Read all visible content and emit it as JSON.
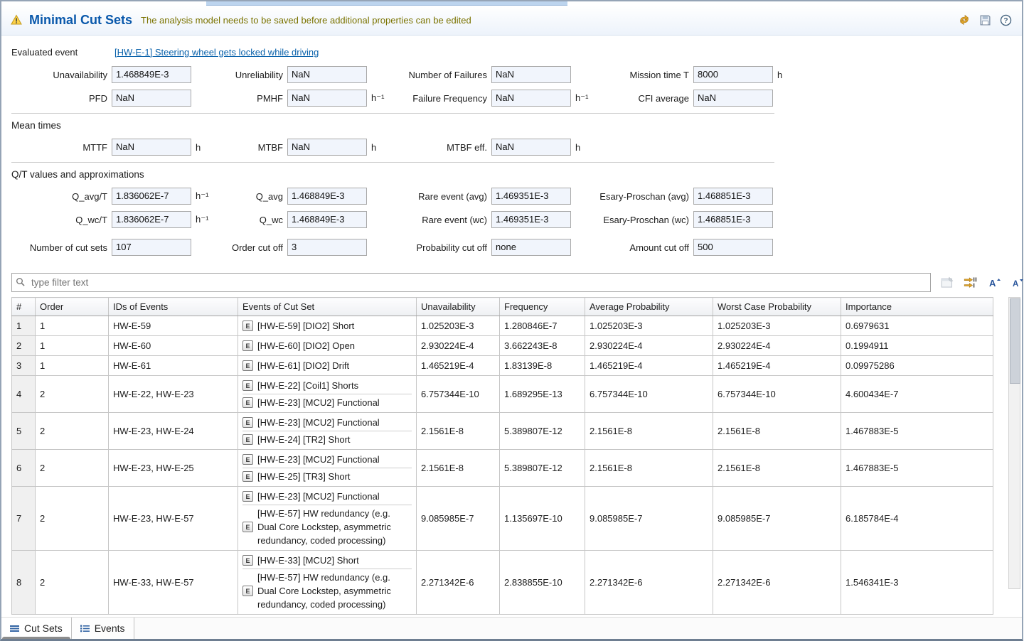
{
  "header": {
    "title": "Minimal Cut Sets",
    "message": "The analysis model needs to be saved before additional properties can be edited",
    "icons": [
      "warning-icon",
      "sync-icon",
      "save-icon",
      "help-icon"
    ]
  },
  "form": {
    "evaluated_event_label": "Evaluated event",
    "evaluated_event_link": "[HW-E-1] Steering wheel gets locked while driving",
    "section_mean_times": "Mean times",
    "section_qt": "Q/T values and approximations",
    "field_rows": [
      {
        "fields": [
          {
            "label": "Unavailability",
            "value": "1.468849E-3",
            "unit": ""
          },
          {
            "label": "Unreliability",
            "value": "NaN",
            "unit": ""
          },
          {
            "label": "Number of Failures",
            "value": "NaN",
            "unit": ""
          },
          {
            "label": "Mission time T",
            "value": "8000",
            "unit": "h"
          }
        ]
      },
      {
        "fields": [
          {
            "label": "PFD",
            "value": "NaN",
            "unit": ""
          },
          {
            "label": "PMHF",
            "value": "NaN",
            "unit": "h⁻¹"
          },
          {
            "label": "Failure Frequency",
            "value": "NaN",
            "unit": "h⁻¹"
          },
          {
            "label": "CFI average",
            "value": "NaN",
            "unit": ""
          }
        ]
      },
      {
        "fields": [
          {
            "label": "MTTF",
            "value": "NaN",
            "unit": "h"
          },
          {
            "label": "MTBF",
            "value": "NaN",
            "unit": "h"
          },
          {
            "label": "MTBF eff.",
            "value": "NaN",
            "unit": "h"
          }
        ]
      },
      {
        "fields": [
          {
            "label": "Q_avg/T",
            "value": "1.836062E-7",
            "unit": "h⁻¹"
          },
          {
            "label": "Q_avg",
            "value": "1.468849E-3",
            "unit": ""
          },
          {
            "label": "Rare event (avg)",
            "value": "1.469351E-3",
            "unit": ""
          },
          {
            "label": "Esary-Proschan (avg)",
            "value": "1.468851E-3",
            "unit": ""
          }
        ]
      },
      {
        "fields": [
          {
            "label": "Q_wc/T",
            "value": "1.836062E-7",
            "unit": "h⁻¹"
          },
          {
            "label": "Q_wc",
            "value": "1.468849E-3",
            "unit": ""
          },
          {
            "label": "Rare event (wc)",
            "value": "1.469351E-3",
            "unit": ""
          },
          {
            "label": "Esary-Proschan (wc)",
            "value": "1.468851E-3",
            "unit": ""
          }
        ]
      },
      {
        "fields": [
          {
            "label": "Number of cut sets",
            "value": "107",
            "unit": ""
          },
          {
            "label": "Order cut off",
            "value": "3",
            "unit": ""
          },
          {
            "label": "Probability cut off",
            "value": "none",
            "unit": ""
          },
          {
            "label": "Amount cut off",
            "value": "500",
            "unit": ""
          }
        ]
      }
    ]
  },
  "filter": {
    "placeholder": "type filter text",
    "toolbar_icons": [
      "pin-editor-icon",
      "pack-columns-icon",
      "font-increase-icon",
      "font-decrease-icon"
    ]
  },
  "table": {
    "event_icon_letter": "E",
    "columns": [
      "#",
      "Order",
      "IDs of Events",
      "Events of Cut Set",
      "Unavailability",
      "Frequency",
      "Average Probability",
      "Worst Case Probability",
      "Importance"
    ],
    "rows": [
      {
        "num": "1",
        "order": "1",
        "ids": "HW-E-59",
        "events": [
          "[HW-E-59] [DIO2] Short"
        ],
        "unavailability": "1.025203E-3",
        "frequency": "1.280846E-7",
        "avg_probability": "1.025203E-3",
        "wc_probability": "1.025203E-3",
        "importance": "0.6979631"
      },
      {
        "num": "2",
        "order": "1",
        "ids": "HW-E-60",
        "events": [
          "[HW-E-60] [DIO2] Open"
        ],
        "unavailability": "2.930224E-4",
        "frequency": "3.662243E-8",
        "avg_probability": "2.930224E-4",
        "wc_probability": "2.930224E-4",
        "importance": "0.1994911"
      },
      {
        "num": "3",
        "order": "1",
        "ids": "HW-E-61",
        "events": [
          "[HW-E-61] [DIO2] Drift"
        ],
        "unavailability": "1.465219E-4",
        "frequency": "1.83139E-8",
        "avg_probability": "1.465219E-4",
        "wc_probability": "1.465219E-4",
        "importance": "0.09975286"
      },
      {
        "num": "4",
        "order": "2",
        "ids": "HW-E-22, HW-E-23",
        "events": [
          "[HW-E-22] [Coil1] Shorts",
          "[HW-E-23] [MCU2] Functional"
        ],
        "unavailability": "6.757344E-10",
        "frequency": "1.689295E-13",
        "avg_probability": "6.757344E-10",
        "wc_probability": "6.757344E-10",
        "importance": "4.600434E-7"
      },
      {
        "num": "5",
        "order": "2",
        "ids": "HW-E-23, HW-E-24",
        "events": [
          "[HW-E-23] [MCU2] Functional",
          "[HW-E-24] [TR2] Short"
        ],
        "unavailability": "2.1561E-8",
        "frequency": "5.389807E-12",
        "avg_probability": "2.1561E-8",
        "wc_probability": "2.1561E-8",
        "importance": "1.467883E-5"
      },
      {
        "num": "6",
        "order": "2",
        "ids": "HW-E-23, HW-E-25",
        "events": [
          "[HW-E-23] [MCU2] Functional",
          "[HW-E-25] [TR3] Short"
        ],
        "unavailability": "2.1561E-8",
        "frequency": "5.389807E-12",
        "avg_probability": "2.1561E-8",
        "wc_probability": "2.1561E-8",
        "importance": "1.467883E-5"
      },
      {
        "num": "7",
        "order": "2",
        "ids": "HW-E-23, HW-E-57",
        "events": [
          "[HW-E-23] [MCU2] Functional",
          "[HW-E-57] HW redundancy (e.g. Dual Core Lockstep, asymmetric redundancy, coded processing)"
        ],
        "unavailability": "9.085985E-7",
        "frequency": "1.135697E-10",
        "avg_probability": "9.085985E-7",
        "wc_probability": "9.085985E-7",
        "importance": "6.185784E-4"
      },
      {
        "num": "8",
        "order": "2",
        "ids": "HW-E-33, HW-E-57",
        "events": [
          "[HW-E-33] [MCU2] Short",
          "[HW-E-57] HW redundancy (e.g. Dual Core Lockstep, asymmetric redundancy, coded processing)"
        ],
        "unavailability": "2.271342E-6",
        "frequency": "2.838855E-10",
        "avg_probability": "2.271342E-6",
        "wc_probability": "2.271342E-6",
        "importance": "1.546341E-3"
      }
    ]
  },
  "tabs": [
    {
      "label": "Cut Sets",
      "icon": "cut-sets-icon",
      "active": true
    },
    {
      "label": "Events",
      "icon": "events-icon",
      "active": false
    }
  ]
}
